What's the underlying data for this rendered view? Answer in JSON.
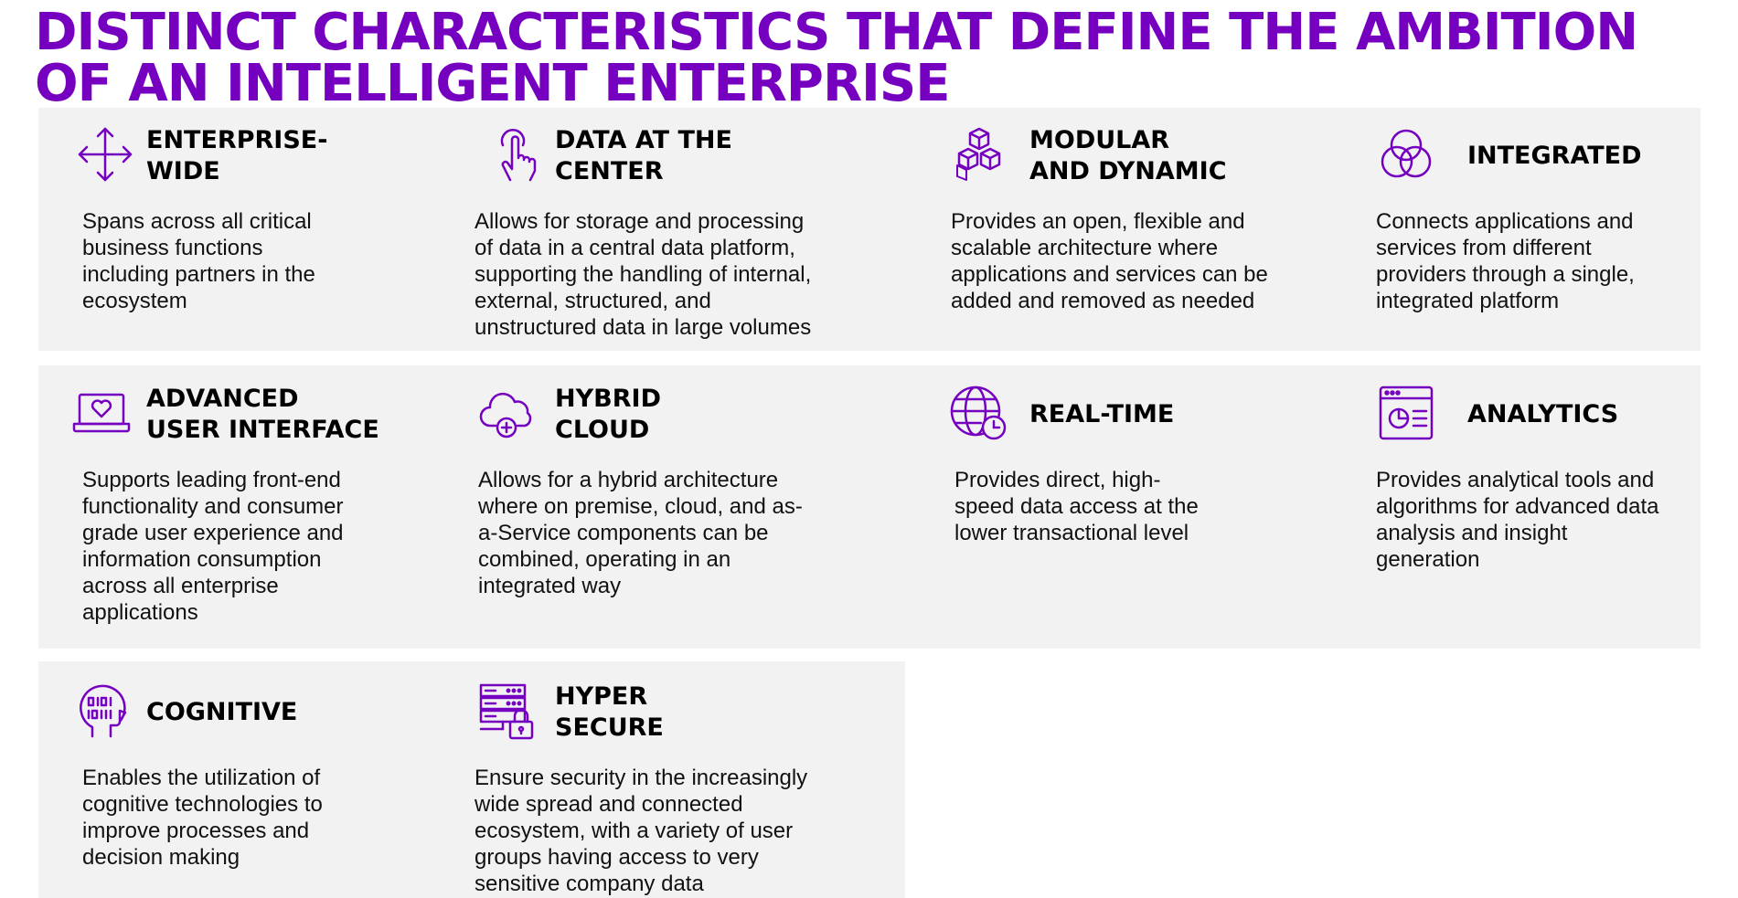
{
  "title": "DISTINCT CHARACTERISTICS THAT DEFINE THE AMBITION OF AN INTELLIGENT ENTERPRISE",
  "colors": {
    "accent": "#7500c0",
    "panel": "#f2f2f2",
    "text": "#111111"
  },
  "cards": [
    {
      "icon": "arrows-move-icon",
      "heading": "ENTERPRISE-\nWIDE",
      "description": "Spans across all critical\nbusiness functions\nincluding partners in the\necosystem"
    },
    {
      "icon": "touch-hand-icon",
      "heading": "DATA AT THE\nCENTER",
      "description": "Allows for storage and processing\nof data in a central data platform,\nsupporting  the handling of internal,\nexternal, structured, and\nunstructured data in large volumes"
    },
    {
      "icon": "cubes-icon",
      "heading": "MODULAR\nAND DYNAMIC",
      "description": "Provides an open, flexible and\nscalable architecture where\napplications and services can be\nadded and removed as needed"
    },
    {
      "icon": "venn-circles-icon",
      "heading": "INTEGRATED",
      "description": "Connects applications and\nservices from different\nproviders through a single,\nintegrated platform"
    },
    {
      "icon": "laptop-heart-icon",
      "heading": "ADVANCED\nUSER INTERFACE",
      "description": "Supports leading front-end\nfunctionality and  consumer\ngrade user experience and\ninformation consumption\nacross all enterprise\napplications"
    },
    {
      "icon": "cloud-plus-icon",
      "heading": "HYBRID\nCLOUD",
      "description": "Allows for a hybrid architecture\nwhere on premise, cloud, and as-\na-Service components can be\ncombined, operating in an\nintegrated way"
    },
    {
      "icon": "globe-clock-icon",
      "heading": "REAL-TIME",
      "description": "Provides direct, high-\nspeed data access at the\nlower transactional level"
    },
    {
      "icon": "browser-chart-icon",
      "heading": "ANALYTICS",
      "description": "Provides analytical tools and\nalgorithms for advanced data\nanalysis and insight\ngeneration"
    },
    {
      "icon": "head-binary-icon",
      "heading": "COGNITIVE",
      "description": "Enables the utilization of\ncognitive technologies to\nimprove processes and\ndecision making"
    },
    {
      "icon": "server-lock-icon",
      "heading": "HYPER\nSECURE",
      "description": "Ensure security in the increasingly\nwide spread and connected\necosystem, with a variety of user\ngroups having access to very\nsensitive company data"
    }
  ]
}
